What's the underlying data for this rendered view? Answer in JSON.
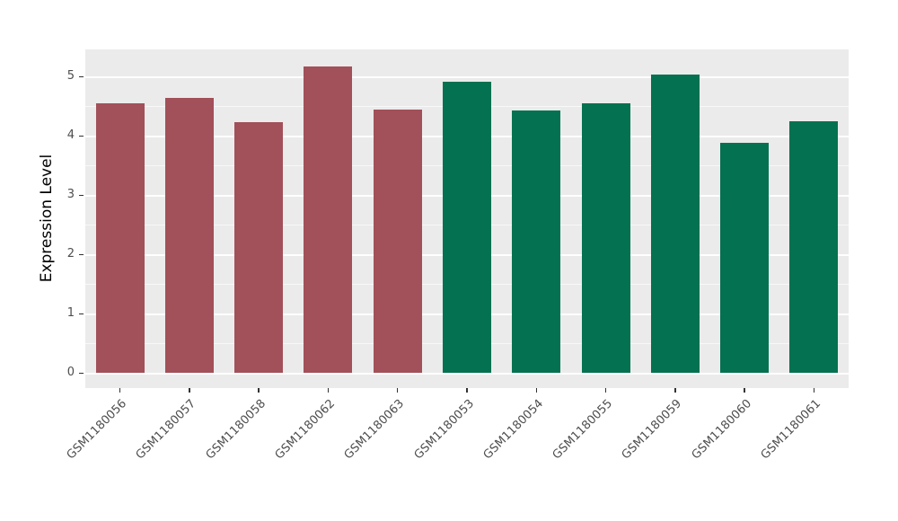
{
  "chart_data": {
    "type": "bar",
    "title": "",
    "xlabel": "",
    "ylabel": "Expression Level",
    "legend": "none",
    "grid": true,
    "ylim": [
      0,
      5.45
    ],
    "y_ticks": [
      0,
      1,
      2,
      3,
      4,
      5
    ],
    "categories": [
      "GSM1180056",
      "GSM1180057",
      "GSM1180058",
      "GSM1180062",
      "GSM1180063",
      "GSM1180053",
      "GSM1180054",
      "GSM1180055",
      "GSM1180059",
      "GSM1180060",
      "GSM1180061"
    ],
    "values": [
      4.55,
      4.63,
      4.23,
      5.17,
      4.44,
      4.91,
      4.42,
      4.54,
      5.03,
      3.88,
      4.25
    ],
    "groups": [
      "maroon",
      "maroon",
      "maroon",
      "maroon",
      "maroon",
      "green",
      "green",
      "green",
      "green",
      "green",
      "green"
    ],
    "group_colors": {
      "maroon": "#A25059",
      "green": "#047150"
    },
    "panel_background": "#EBEBEB",
    "grid_color": "#FFFFFF",
    "axis_text_color": "#4D4D4D"
  }
}
